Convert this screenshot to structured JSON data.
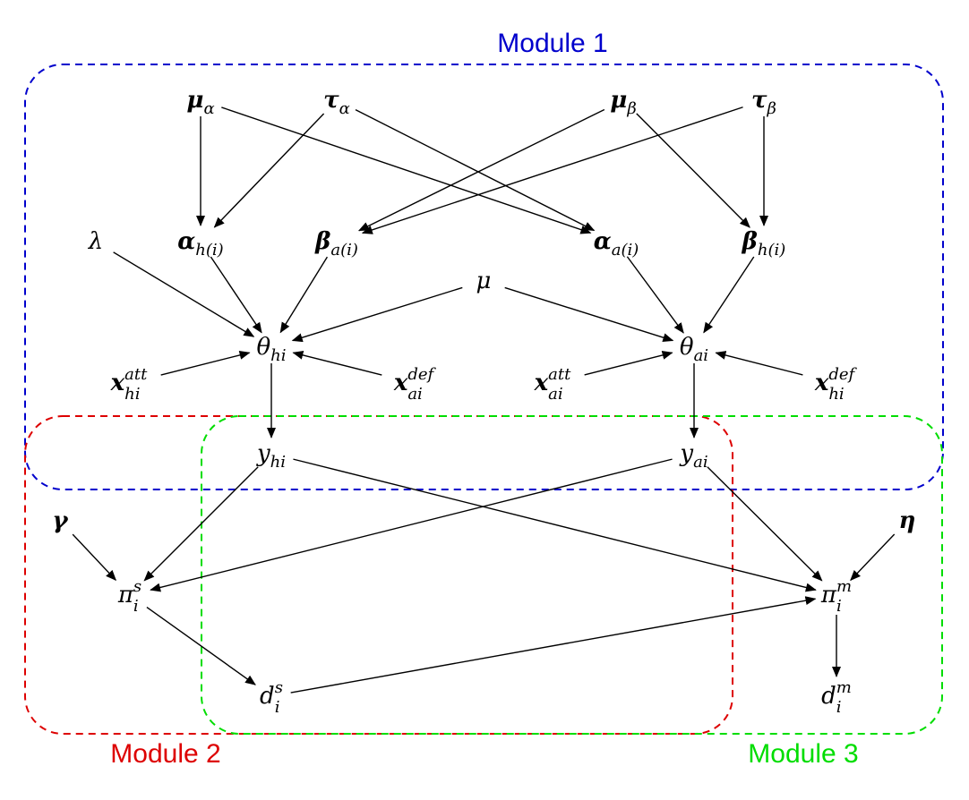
{
  "modules": [
    {
      "id": "m1",
      "label": "Module 1",
      "color": "#0000cc"
    },
    {
      "id": "m2",
      "label": "Module 2",
      "color": "#dd0000"
    },
    {
      "id": "m3",
      "label": "Module 3",
      "color": "#00dd00"
    }
  ],
  "nodes": [
    {
      "id": "mu_alpha",
      "main": "μ",
      "sub": "α",
      "bold": true
    },
    {
      "id": "tau_alpha",
      "main": "τ",
      "sub": "α",
      "bold": true
    },
    {
      "id": "mu_beta",
      "main": "μ",
      "sub": "β",
      "bold": true
    },
    {
      "id": "tau_beta",
      "main": "τ",
      "sub": "β",
      "bold": true
    },
    {
      "id": "lambda",
      "main": "λ",
      "bold": false
    },
    {
      "id": "alpha_h",
      "main": "α",
      "sub": "h(i)",
      "bold": true
    },
    {
      "id": "beta_a",
      "main": "β",
      "sub": "a(i)",
      "bold": true
    },
    {
      "id": "alpha_a",
      "main": "α",
      "sub": "a(i)",
      "bold": true
    },
    {
      "id": "beta_h",
      "main": "β",
      "sub": "h(i)",
      "bold": true
    },
    {
      "id": "mu",
      "main": "μ",
      "bold": false
    },
    {
      "id": "theta_hi",
      "main": "θ",
      "sub": "hi",
      "bold": false
    },
    {
      "id": "theta_ai",
      "main": "θ",
      "sub": "ai",
      "bold": false
    },
    {
      "id": "x_att_hi",
      "main": "x",
      "sub": "hi",
      "sup": "att",
      "bold": true
    },
    {
      "id": "x_def_ai",
      "main": "x",
      "sub": "ai",
      "sup": "def",
      "bold": true
    },
    {
      "id": "x_att_ai",
      "main": "x",
      "sub": "ai",
      "sup": "att",
      "bold": true
    },
    {
      "id": "x_def_hi",
      "main": "x",
      "sub": "hi",
      "sup": "def",
      "bold": true
    },
    {
      "id": "y_hi",
      "main": "y",
      "sub": "hi",
      "bold": false
    },
    {
      "id": "y_ai",
      "main": "y",
      "sub": "ai",
      "bold": false
    },
    {
      "id": "gamma",
      "main": "γ",
      "bold": true
    },
    {
      "id": "eta",
      "main": "η",
      "bold": true
    },
    {
      "id": "pi_s",
      "main": "π",
      "sub": "i",
      "sup": "s",
      "bold": false
    },
    {
      "id": "pi_m",
      "main": "π",
      "sub": "i",
      "sup": "m",
      "bold": false
    },
    {
      "id": "d_s",
      "main": "d",
      "sub": "i",
      "sup": "s",
      "bold": false
    },
    {
      "id": "d_m",
      "main": "d",
      "sub": "i",
      "sup": "m",
      "bold": false
    }
  ],
  "edges": [
    [
      "mu_alpha",
      "alpha_h"
    ],
    [
      "mu_alpha",
      "alpha_a"
    ],
    [
      "tau_alpha",
      "alpha_h"
    ],
    [
      "tau_alpha",
      "alpha_a"
    ],
    [
      "mu_beta",
      "beta_a"
    ],
    [
      "mu_beta",
      "beta_h"
    ],
    [
      "tau_beta",
      "beta_a"
    ],
    [
      "tau_beta",
      "beta_h"
    ],
    [
      "lambda",
      "theta_hi"
    ],
    [
      "alpha_h",
      "theta_hi"
    ],
    [
      "beta_a",
      "theta_hi"
    ],
    [
      "mu",
      "theta_hi"
    ],
    [
      "mu",
      "theta_ai"
    ],
    [
      "alpha_a",
      "theta_ai"
    ],
    [
      "beta_h",
      "theta_ai"
    ],
    [
      "x_att_hi",
      "theta_hi"
    ],
    [
      "x_def_ai",
      "theta_hi"
    ],
    [
      "x_att_ai",
      "theta_ai"
    ],
    [
      "x_def_hi",
      "theta_ai"
    ],
    [
      "theta_hi",
      "y_hi"
    ],
    [
      "theta_ai",
      "y_ai"
    ],
    [
      "y_hi",
      "pi_s"
    ],
    [
      "y_hi",
      "pi_m"
    ],
    [
      "y_ai",
      "pi_s"
    ],
    [
      "y_ai",
      "pi_m"
    ],
    [
      "gamma",
      "pi_s"
    ],
    [
      "eta",
      "pi_m"
    ],
    [
      "pi_s",
      "d_s"
    ],
    [
      "d_s",
      "pi_m"
    ],
    [
      "pi_m",
      "d_m"
    ]
  ]
}
